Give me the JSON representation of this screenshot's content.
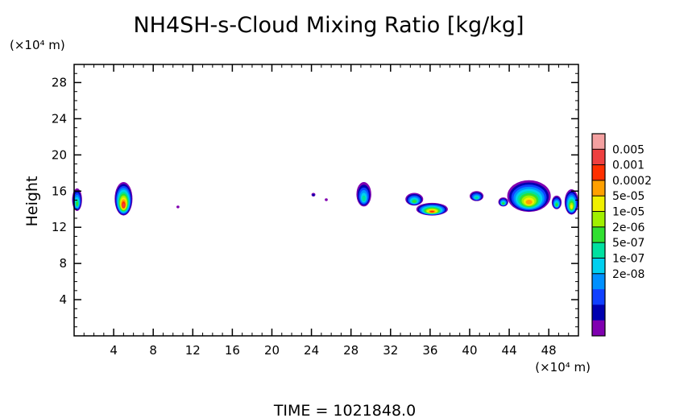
{
  "chart_data": {
    "type": "heatmap",
    "title": "NH4SH-s-Cloud Mixing Ratio [kg/kg]",
    "ylabel": "Height",
    "xunit": "(×10⁴ m)",
    "yunit": "(×10⁴ m)",
    "xlim": [
      0,
      51
    ],
    "ylim": [
      0,
      30
    ],
    "xticks": [
      4,
      8,
      12,
      16,
      20,
      24,
      28,
      32,
      36,
      40,
      44,
      48
    ],
    "yticks": [
      4,
      8,
      12,
      16,
      20,
      24,
      28
    ],
    "colorbar": {
      "labels": [
        "0.005",
        "0.001",
        "0.0002",
        "5e-05",
        "1e-05",
        "2e-06",
        "5e-07",
        "1e-07",
        "2e-08"
      ],
      "colors": [
        "#f4a0a0",
        "#ee4040",
        "#ff3000",
        "#ffa000",
        "#f0f000",
        "#a0f000",
        "#30e030",
        "#00e0a0",
        "#00d0f0",
        "#0090ff",
        "#1040ff",
        "#0000b0",
        "#8000b0"
      ]
    },
    "clouds": [
      {
        "xc": 0.3,
        "w": 1.0,
        "ybot": 13.8,
        "ytop": 16.3,
        "peak": 6
      },
      {
        "xc": 5.0,
        "w": 1.8,
        "ybot": 13.3,
        "ytop": 17.0,
        "peak": 11
      },
      {
        "xc": 10.5,
        "w": 0.3,
        "ybot": 14.1,
        "ytop": 14.4,
        "peak": 0
      },
      {
        "xc": 24.2,
        "w": 0.4,
        "ybot": 15.4,
        "ytop": 15.8,
        "peak": 1
      },
      {
        "xc": 25.5,
        "w": 0.3,
        "ybot": 14.9,
        "ytop": 15.2,
        "peak": 0
      },
      {
        "xc": 29.3,
        "w": 1.5,
        "ybot": 14.3,
        "ytop": 17.0,
        "peak": 5
      },
      {
        "xc": 34.4,
        "w": 1.8,
        "ybot": 14.4,
        "ytop": 15.8,
        "peak": 6
      },
      {
        "xc": 36.2,
        "w": 3.2,
        "ybot": 13.3,
        "ytop": 14.7,
        "peak": 10
      },
      {
        "xc": 40.7,
        "w": 1.4,
        "ybot": 14.9,
        "ytop": 16.0,
        "peak": 5
      },
      {
        "xc": 43.4,
        "w": 1.0,
        "ybot": 14.3,
        "ytop": 15.3,
        "peak": 6
      },
      {
        "xc": 46.0,
        "w": 4.4,
        "ybot": 13.7,
        "ytop": 17.2,
        "peak": 9
      },
      {
        "xc": 48.8,
        "w": 1.0,
        "ybot": 14.0,
        "ytop": 15.5,
        "peak": 6
      },
      {
        "xc": 50.3,
        "w": 1.4,
        "ybot": 13.4,
        "ytop": 16.2,
        "peak": 8
      }
    ]
  },
  "footer": {
    "time_label": "TIME = 1021848.0"
  }
}
